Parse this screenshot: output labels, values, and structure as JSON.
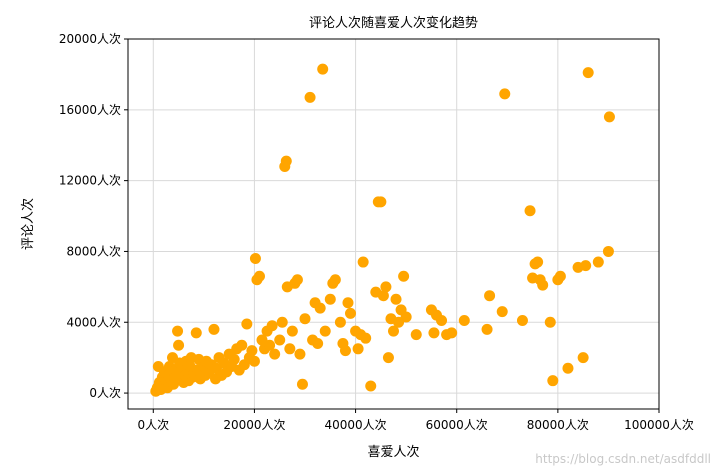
{
  "chart_data": {
    "type": "scatter",
    "title": "评论人次随喜爱人次变化趋势",
    "xlabel": "喜爱人次",
    "ylabel": "评论人次",
    "xlim": [
      -5000,
      100000
    ],
    "ylim": [
      -900,
      20000
    ],
    "xticks": [
      0,
      20000,
      40000,
      60000,
      80000,
      100000
    ],
    "yticks": [
      0,
      4000,
      8000,
      12000,
      16000,
      20000
    ],
    "xtick_labels": [
      "0人次",
      "20000人次",
      "40000人次",
      "60000人次",
      "80000人次",
      "100000人次"
    ],
    "ytick_labels": [
      "0人次",
      "4000人次",
      "8000人次",
      "12000人次",
      "16000人次",
      "20000人次"
    ],
    "grid": true,
    "marker_color": "#FFA500",
    "points": [
      [
        500,
        100
      ],
      [
        800,
        300
      ],
      [
        1000,
        1500
      ],
      [
        1200,
        600
      ],
      [
        1500,
        200
      ],
      [
        1800,
        900
      ],
      [
        2000,
        400
      ],
      [
        2200,
        1200
      ],
      [
        2500,
        700
      ],
      [
        2800,
        300
      ],
      [
        3000,
        1000
      ],
      [
        3200,
        1500
      ],
      [
        3500,
        800
      ],
      [
        3800,
        2000
      ],
      [
        4000,
        500
      ],
      [
        4200,
        1100
      ],
      [
        4500,
        1300
      ],
      [
        4800,
        3500
      ],
      [
        5000,
        2700
      ],
      [
        5200,
        1700
      ],
      [
        5500,
        900
      ],
      [
        5800,
        1400
      ],
      [
        6000,
        600
      ],
      [
        6300,
        1000
      ],
      [
        6500,
        1800
      ],
      [
        6800,
        1200
      ],
      [
        7000,
        700
      ],
      [
        7300,
        1500
      ],
      [
        7500,
        2000
      ],
      [
        7800,
        900
      ],
      [
        8000,
        1100
      ],
      [
        8500,
        3400
      ],
      [
        8800,
        1300
      ],
      [
        9000,
        1900
      ],
      [
        9300,
        800
      ],
      [
        9500,
        1200
      ],
      [
        10000,
        1500
      ],
      [
        10300,
        1000
      ],
      [
        10500,
        1800
      ],
      [
        11000,
        1200
      ],
      [
        11500,
        1600
      ],
      [
        12000,
        3600
      ],
      [
        12300,
        800
      ],
      [
        12500,
        1400
      ],
      [
        13000,
        2000
      ],
      [
        13500,
        1000
      ],
      [
        14000,
        1700
      ],
      [
        14500,
        1200
      ],
      [
        15000,
        2200
      ],
      [
        15500,
        1500
      ],
      [
        16000,
        1900
      ],
      [
        16500,
        2500
      ],
      [
        17000,
        1300
      ],
      [
        17500,
        2700
      ],
      [
        18000,
        1600
      ],
      [
        18500,
        3900
      ],
      [
        19000,
        2000
      ],
      [
        19500,
        2400
      ],
      [
        20000,
        1800
      ],
      [
        20200,
        7600
      ],
      [
        20500,
        6400
      ],
      [
        21000,
        6600
      ],
      [
        21500,
        3000
      ],
      [
        22000,
        2500
      ],
      [
        22500,
        3500
      ],
      [
        23000,
        2700
      ],
      [
        23500,
        3800
      ],
      [
        24000,
        2200
      ],
      [
        25000,
        3000
      ],
      [
        25500,
        4000
      ],
      [
        26000,
        12800
      ],
      [
        26300,
        13100
      ],
      [
        26500,
        6000
      ],
      [
        27000,
        2500
      ],
      [
        27500,
        3500
      ],
      [
        28000,
        6200
      ],
      [
        28500,
        6400
      ],
      [
        29000,
        2200
      ],
      [
        29500,
        500
      ],
      [
        30000,
        4200
      ],
      [
        31000,
        16700
      ],
      [
        31500,
        3000
      ],
      [
        32000,
        5100
      ],
      [
        32500,
        2800
      ],
      [
        33000,
        4800
      ],
      [
        33500,
        18300
      ],
      [
        34000,
        3500
      ],
      [
        35000,
        5300
      ],
      [
        35500,
        6200
      ],
      [
        36000,
        6400
      ],
      [
        37000,
        4000
      ],
      [
        37500,
        2800
      ],
      [
        38000,
        2400
      ],
      [
        38500,
        5100
      ],
      [
        39000,
        4500
      ],
      [
        40000,
        3500
      ],
      [
        40500,
        2500
      ],
      [
        41000,
        3300
      ],
      [
        41500,
        7400
      ],
      [
        42000,
        3100
      ],
      [
        43000,
        400
      ],
      [
        44000,
        5700
      ],
      [
        44500,
        10800
      ],
      [
        45000,
        10800
      ],
      [
        45500,
        5500
      ],
      [
        46000,
        6000
      ],
      [
        46500,
        2000
      ],
      [
        47000,
        4200
      ],
      [
        47500,
        3500
      ],
      [
        48000,
        5300
      ],
      [
        48500,
        4000
      ],
      [
        49000,
        4700
      ],
      [
        49500,
        6600
      ],
      [
        50000,
        4300
      ],
      [
        52000,
        3300
      ],
      [
        55000,
        4700
      ],
      [
        55500,
        3400
      ],
      [
        56000,
        4400
      ],
      [
        57000,
        4100
      ],
      [
        58000,
        3300
      ],
      [
        59000,
        3400
      ],
      [
        61500,
        4100
      ],
      [
        66000,
        3600
      ],
      [
        66500,
        5500
      ],
      [
        69000,
        4600
      ],
      [
        69500,
        16900
      ],
      [
        73000,
        4100
      ],
      [
        74500,
        10300
      ],
      [
        75000,
        6500
      ],
      [
        75500,
        7300
      ],
      [
        76000,
        7400
      ],
      [
        76500,
        6400
      ],
      [
        77000,
        6100
      ],
      [
        78500,
        4000
      ],
      [
        79000,
        700
      ],
      [
        80000,
        6400
      ],
      [
        80500,
        6600
      ],
      [
        82000,
        1400
      ],
      [
        84000,
        7100
      ],
      [
        85000,
        2000
      ],
      [
        85500,
        7200
      ],
      [
        86000,
        18100
      ],
      [
        88000,
        7400
      ],
      [
        90000,
        8000
      ],
      [
        90200,
        15600
      ]
    ]
  },
  "watermark": "https://blog.csdn.net/asdfddll"
}
